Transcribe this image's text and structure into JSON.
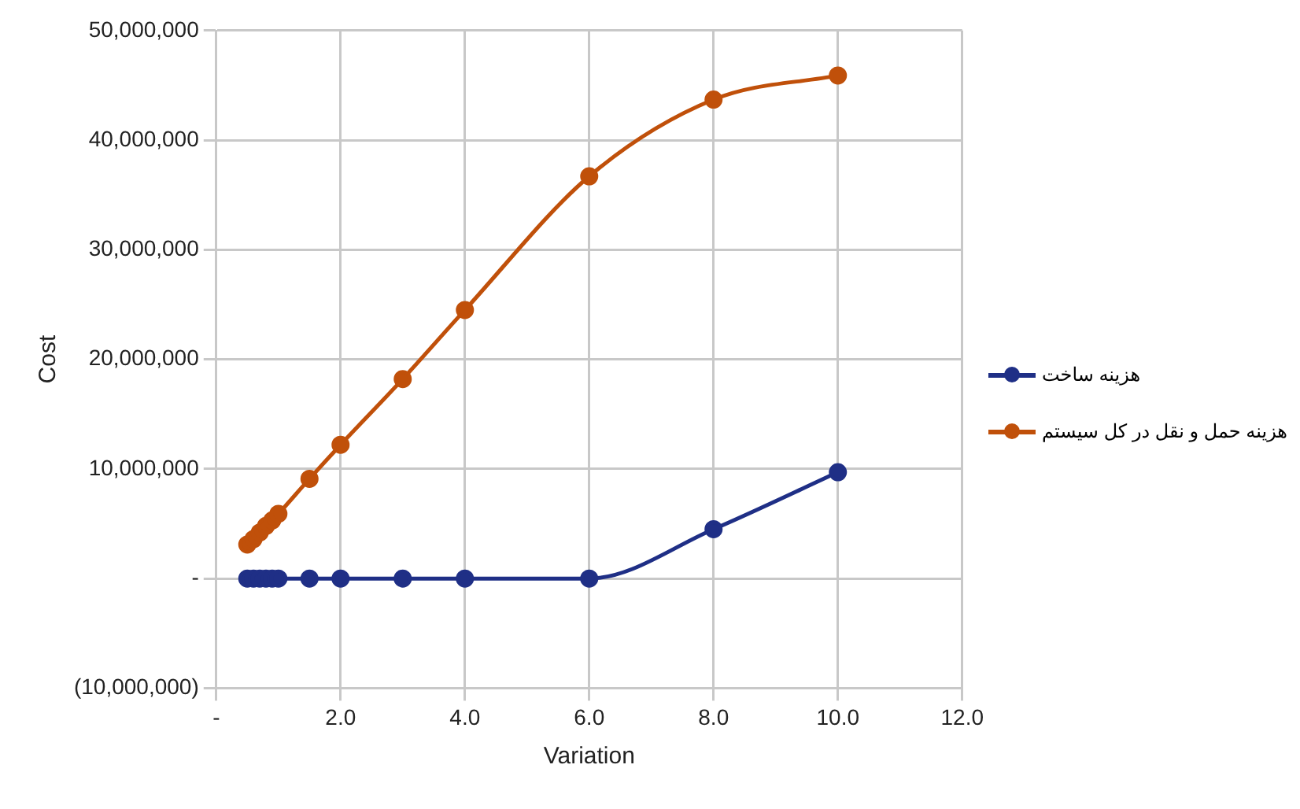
{
  "chart_data": {
    "type": "line",
    "xlabel": "Variation",
    "ylabel": "Cost",
    "x": [
      0.5,
      0.6,
      0.7,
      0.8,
      0.9,
      1.0,
      1.5,
      2,
      3,
      4,
      6,
      8,
      10
    ],
    "series": [
      {
        "name": "هزینه ساخت",
        "color": "#1f2f86",
        "values": [
          0,
          0,
          0,
          0,
          0,
          0,
          0,
          0,
          0,
          0,
          0,
          4500000,
          9700000
        ]
      },
      {
        "name": "هزینه حمل و نقل در کل سیستم",
        "color": "#c0500a",
        "values": [
          3100000,
          3600000,
          4200000,
          4800000,
          5300000,
          5900000,
          9100000,
          12200000,
          18200000,
          24500000,
          36700000,
          43700000,
          45900000
        ]
      }
    ],
    "xlim": [
      0,
      12
    ],
    "xticks": [
      {
        "value": 0,
        "label": "-"
      },
      {
        "value": 2,
        "label": "2.0"
      },
      {
        "value": 4,
        "label": "4.0"
      },
      {
        "value": 6,
        "label": "6.0"
      },
      {
        "value": 8,
        "label": "8.0"
      },
      {
        "value": 10,
        "label": "10.0"
      },
      {
        "value": 12,
        "label": "12.0"
      }
    ],
    "ylim": [
      -10000000,
      50000000
    ],
    "yticks": [
      {
        "value": -10000000,
        "label": "(10,000,000)"
      },
      {
        "value": 0,
        "label": "-"
      },
      {
        "value": 10000000,
        "label": "10,000,000"
      },
      {
        "value": 20000000,
        "label": "20,000,000"
      },
      {
        "value": 30000000,
        "label": "30,000,000"
      },
      {
        "value": 40000000,
        "label": "40,000,000"
      },
      {
        "value": 50000000,
        "label": "50,000,000"
      }
    ],
    "grid": true,
    "legend": "right",
    "marker": "circle",
    "line_style": "solid"
  }
}
